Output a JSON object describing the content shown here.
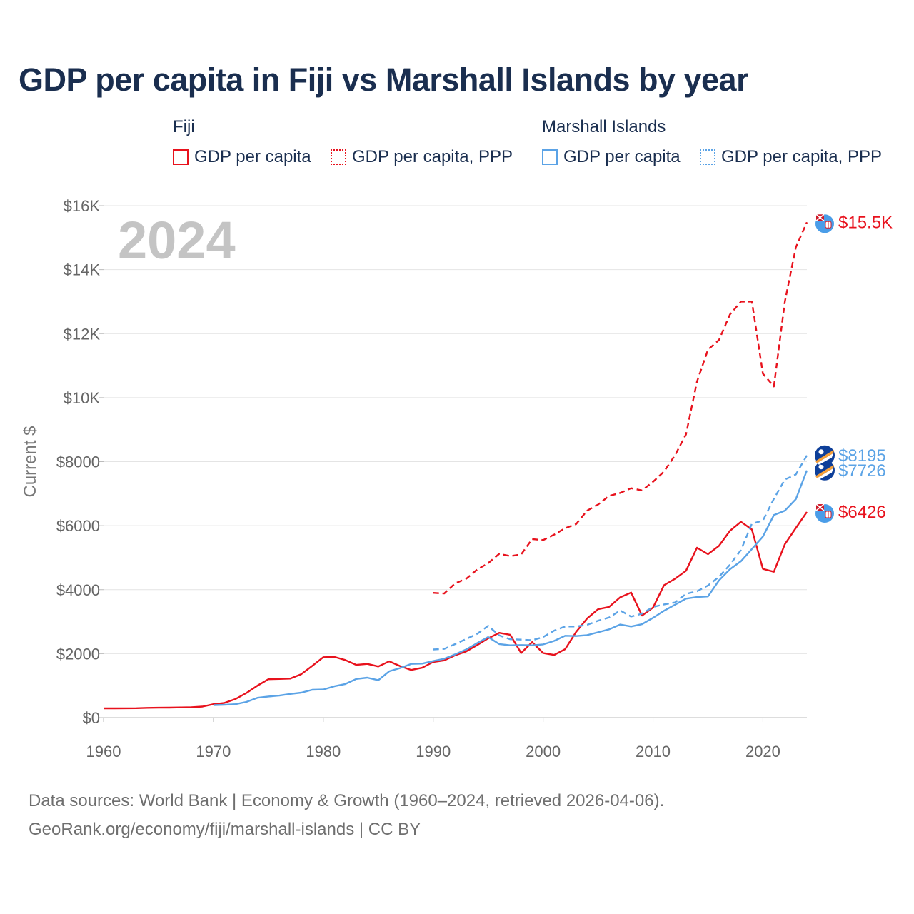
{
  "title": "GDP per capita in Fiji vs Marshall Islands by year",
  "legend": {
    "groups": [
      {
        "name": "Fiji",
        "color": "#e8121d",
        "items": [
          "GDP per capita",
          "GDP per capita, PPP"
        ]
      },
      {
        "name": "Marshall Islands",
        "color": "#5ba3e6",
        "items": [
          "GDP per capita",
          "GDP per capita, PPP"
        ]
      }
    ]
  },
  "footer": {
    "line1": "Data sources: World Bank | Economy & Growth (1960–2024, retrieved 2026-04-06).",
    "line2": "GeoRank.org/economy/fiji/marshall-islands | CC BY"
  },
  "chart_data": {
    "type": "line",
    "year_label": "2024",
    "ylabel": "Current $",
    "xlim": [
      1960,
      2024
    ],
    "ylim": [
      0,
      16000
    ],
    "x_ticks": [
      1960,
      1970,
      1980,
      1990,
      2000,
      2010,
      2020
    ],
    "y_ticks": [
      {
        "value": 0,
        "label": "$0"
      },
      {
        "value": 2000,
        "label": "$2000"
      },
      {
        "value": 4000,
        "label": "$4000"
      },
      {
        "value": 6000,
        "label": "$6000"
      },
      {
        "value": 8000,
        "label": "$8000"
      },
      {
        "value": 10000,
        "label": "$10K"
      },
      {
        "value": 12000,
        "label": "$12K"
      },
      {
        "value": 14000,
        "label": "$14K"
      },
      {
        "value": 16000,
        "label": "$16K"
      }
    ],
    "series": [
      {
        "name": "Fiji GDP per capita",
        "country": "Fiji",
        "style": "solid",
        "color": "#e8121d",
        "end_label": "$6426",
        "flag": "fiji-flag-icon",
        "start_year": 1960,
        "values": [
          290,
          290,
          292,
          295,
          305,
          310,
          312,
          318,
          325,
          345,
          420,
          460,
          580,
          770,
          1000,
          1200,
          1210,
          1220,
          1360,
          1620,
          1890,
          1900,
          1800,
          1650,
          1680,
          1600,
          1760,
          1610,
          1490,
          1560,
          1740,
          1790,
          1950,
          2070,
          2270,
          2480,
          2650,
          2590,
          2020,
          2360,
          2020,
          1960,
          2140,
          2680,
          3100,
          3390,
          3460,
          3760,
          3910,
          3190,
          3440,
          4140,
          4340,
          4590,
          5310,
          5110,
          5370,
          5840,
          6120,
          5880,
          4650,
          4560,
          5420,
          5930,
          6426
        ]
      },
      {
        "name": "Fiji GDP per capita, PPP",
        "country": "Fiji",
        "style": "dashed",
        "color": "#e8121d",
        "end_label": "$15.5K",
        "flag": "fiji-flag-icon",
        "start_year": 1990,
        "values": [
          3900,
          3880,
          4200,
          4340,
          4630,
          4830,
          5120,
          5050,
          5100,
          5580,
          5550,
          5720,
          5920,
          6050,
          6470,
          6660,
          6930,
          7020,
          7170,
          7100,
          7370,
          7690,
          8200,
          8850,
          10500,
          11500,
          11800,
          12600,
          13000,
          13000,
          10750,
          10350,
          13000,
          14700,
          15480
        ]
      },
      {
        "name": "Marshall Islands GDP per capita",
        "country": "Marshall Islands",
        "style": "solid",
        "color": "#5ba3e6",
        "end_label": "$7726",
        "flag": "marshall-islands-flag-icon",
        "start_year": 1970,
        "values": [
          390,
          400,
          420,
          490,
          620,
          660,
          690,
          740,
          780,
          870,
          880,
          980,
          1050,
          1210,
          1250,
          1170,
          1450,
          1550,
          1680,
          1690,
          1770,
          1840,
          1980,
          2130,
          2330,
          2520,
          2300,
          2260,
          2270,
          2260,
          2290,
          2400,
          2560,
          2550,
          2580,
          2670,
          2760,
          2910,
          2850,
          2920,
          3120,
          3340,
          3530,
          3720,
          3770,
          3790,
          4290,
          4640,
          4890,
          5270,
          5660,
          6330,
          6470,
          6830,
          7726
        ]
      },
      {
        "name": "Marshall Islands GDP per capita, PPP",
        "country": "Marshall Islands",
        "style": "dashed",
        "color": "#5ba3e6",
        "end_label": "$8195",
        "flag": "marshall-islands-flag-icon",
        "start_year": 1990,
        "values": [
          2130,
          2150,
          2300,
          2460,
          2620,
          2870,
          2570,
          2450,
          2440,
          2420,
          2520,
          2720,
          2850,
          2850,
          2900,
          3030,
          3130,
          3350,
          3160,
          3250,
          3460,
          3540,
          3600,
          3870,
          3950,
          4130,
          4400,
          4780,
          5240,
          6060,
          6160,
          6840,
          7440,
          7600,
          8195
        ]
      }
    ]
  }
}
